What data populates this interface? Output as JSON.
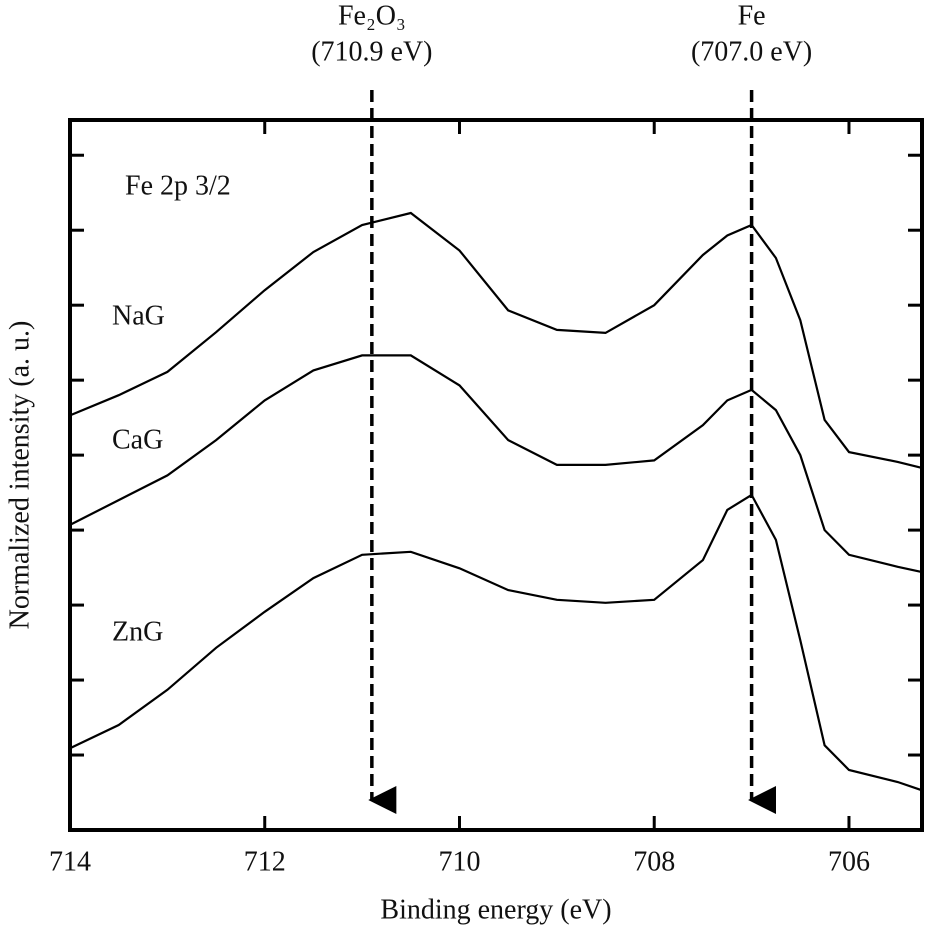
{
  "chart_data": {
    "type": "line",
    "panel_label": "Fe 2p 3/2",
    "x_label": "Binding energy (eV)",
    "y_label": "Normalized intensity (a. u.)",
    "x": [
      714,
      713.5,
      713,
      712.5,
      712,
      711.5,
      711,
      710.5,
      710,
      709.5,
      709,
      708.5,
      708,
      707.5,
      707.25,
      707,
      706.75,
      706.5,
      706.25,
      706,
      705.5,
      705.25
    ],
    "series": [
      {
        "name": "NaG",
        "color": "#000000",
        "values": [
          5.53,
          5.8,
          6.11,
          6.64,
          7.2,
          7.71,
          8.07,
          8.23,
          7.73,
          6.93,
          6.67,
          6.63,
          7.0,
          7.67,
          7.93,
          8.07,
          7.63,
          6.8,
          5.47,
          5.04,
          4.91,
          4.83
        ]
      },
      {
        "name": "CaG",
        "color": "#000000",
        "values": [
          4.07,
          4.4,
          4.73,
          5.2,
          5.73,
          6.13,
          6.33,
          6.33,
          5.93,
          5.2,
          4.87,
          4.87,
          4.93,
          5.4,
          5.73,
          5.87,
          5.6,
          5.0,
          4.0,
          3.67,
          3.51,
          3.44
        ]
      },
      {
        "name": "ZnG",
        "color": "#000000",
        "values": [
          1.09,
          1.4,
          1.87,
          2.43,
          2.91,
          3.36,
          3.67,
          3.71,
          3.49,
          3.2,
          3.07,
          3.03,
          3.07,
          3.6,
          4.27,
          4.47,
          3.87,
          2.53,
          1.13,
          0.8,
          0.64,
          0.53
        ]
      }
    ],
    "annotations": [
      {
        "text": "Fe₂O₃",
        "subtext": "(710.9 eV)",
        "x": 710.9
      },
      {
        "text": "Fe",
        "subtext": "(707.0 eV)",
        "x": 707.0
      }
    ],
    "xlim": [
      714,
      705.25
    ],
    "xticks": [
      714,
      712,
      710,
      708,
      706
    ],
    "ylim": [
      0,
      9.47
    ],
    "yticks": [
      1,
      2,
      3,
      4,
      5,
      6,
      7,
      8,
      9
    ],
    "grid": false
  }
}
